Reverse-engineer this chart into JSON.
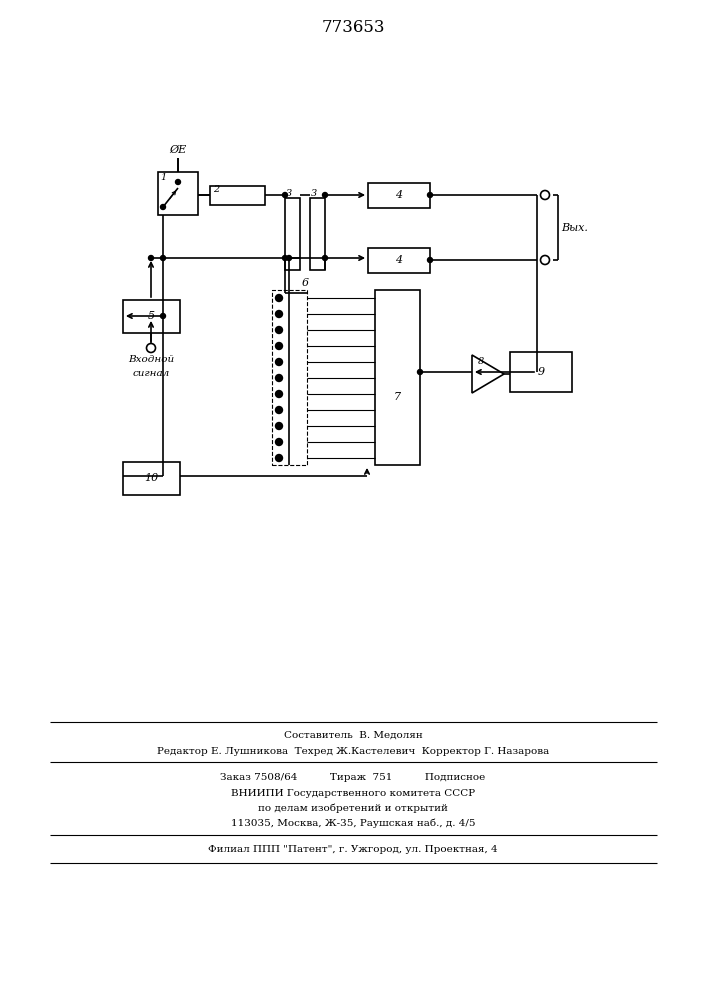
{
  "title": "773653",
  "bg_color": "#ffffff",
  "line_color": "#000000",
  "text_color": "#000000",
  "footer": {
    "line1": "Составитель  В. Медолян",
    "line2": "Редактор Е. Лушникова  Техред Ж.Кастелевич  Корректор Г. Назарова",
    "line3": "Заказ 7508/64          Тираж  751          Подписное",
    "line4": "ВНИИПИ Государственного комитета СССР",
    "line5": "по делам изобретений и открытий",
    "line6": "113035, Москва, Ж-35, Раушская наб., д. 4/5",
    "line7": "Филиал ППП \"Патент\", г. Ужгород, ул. Проектная, 4"
  }
}
